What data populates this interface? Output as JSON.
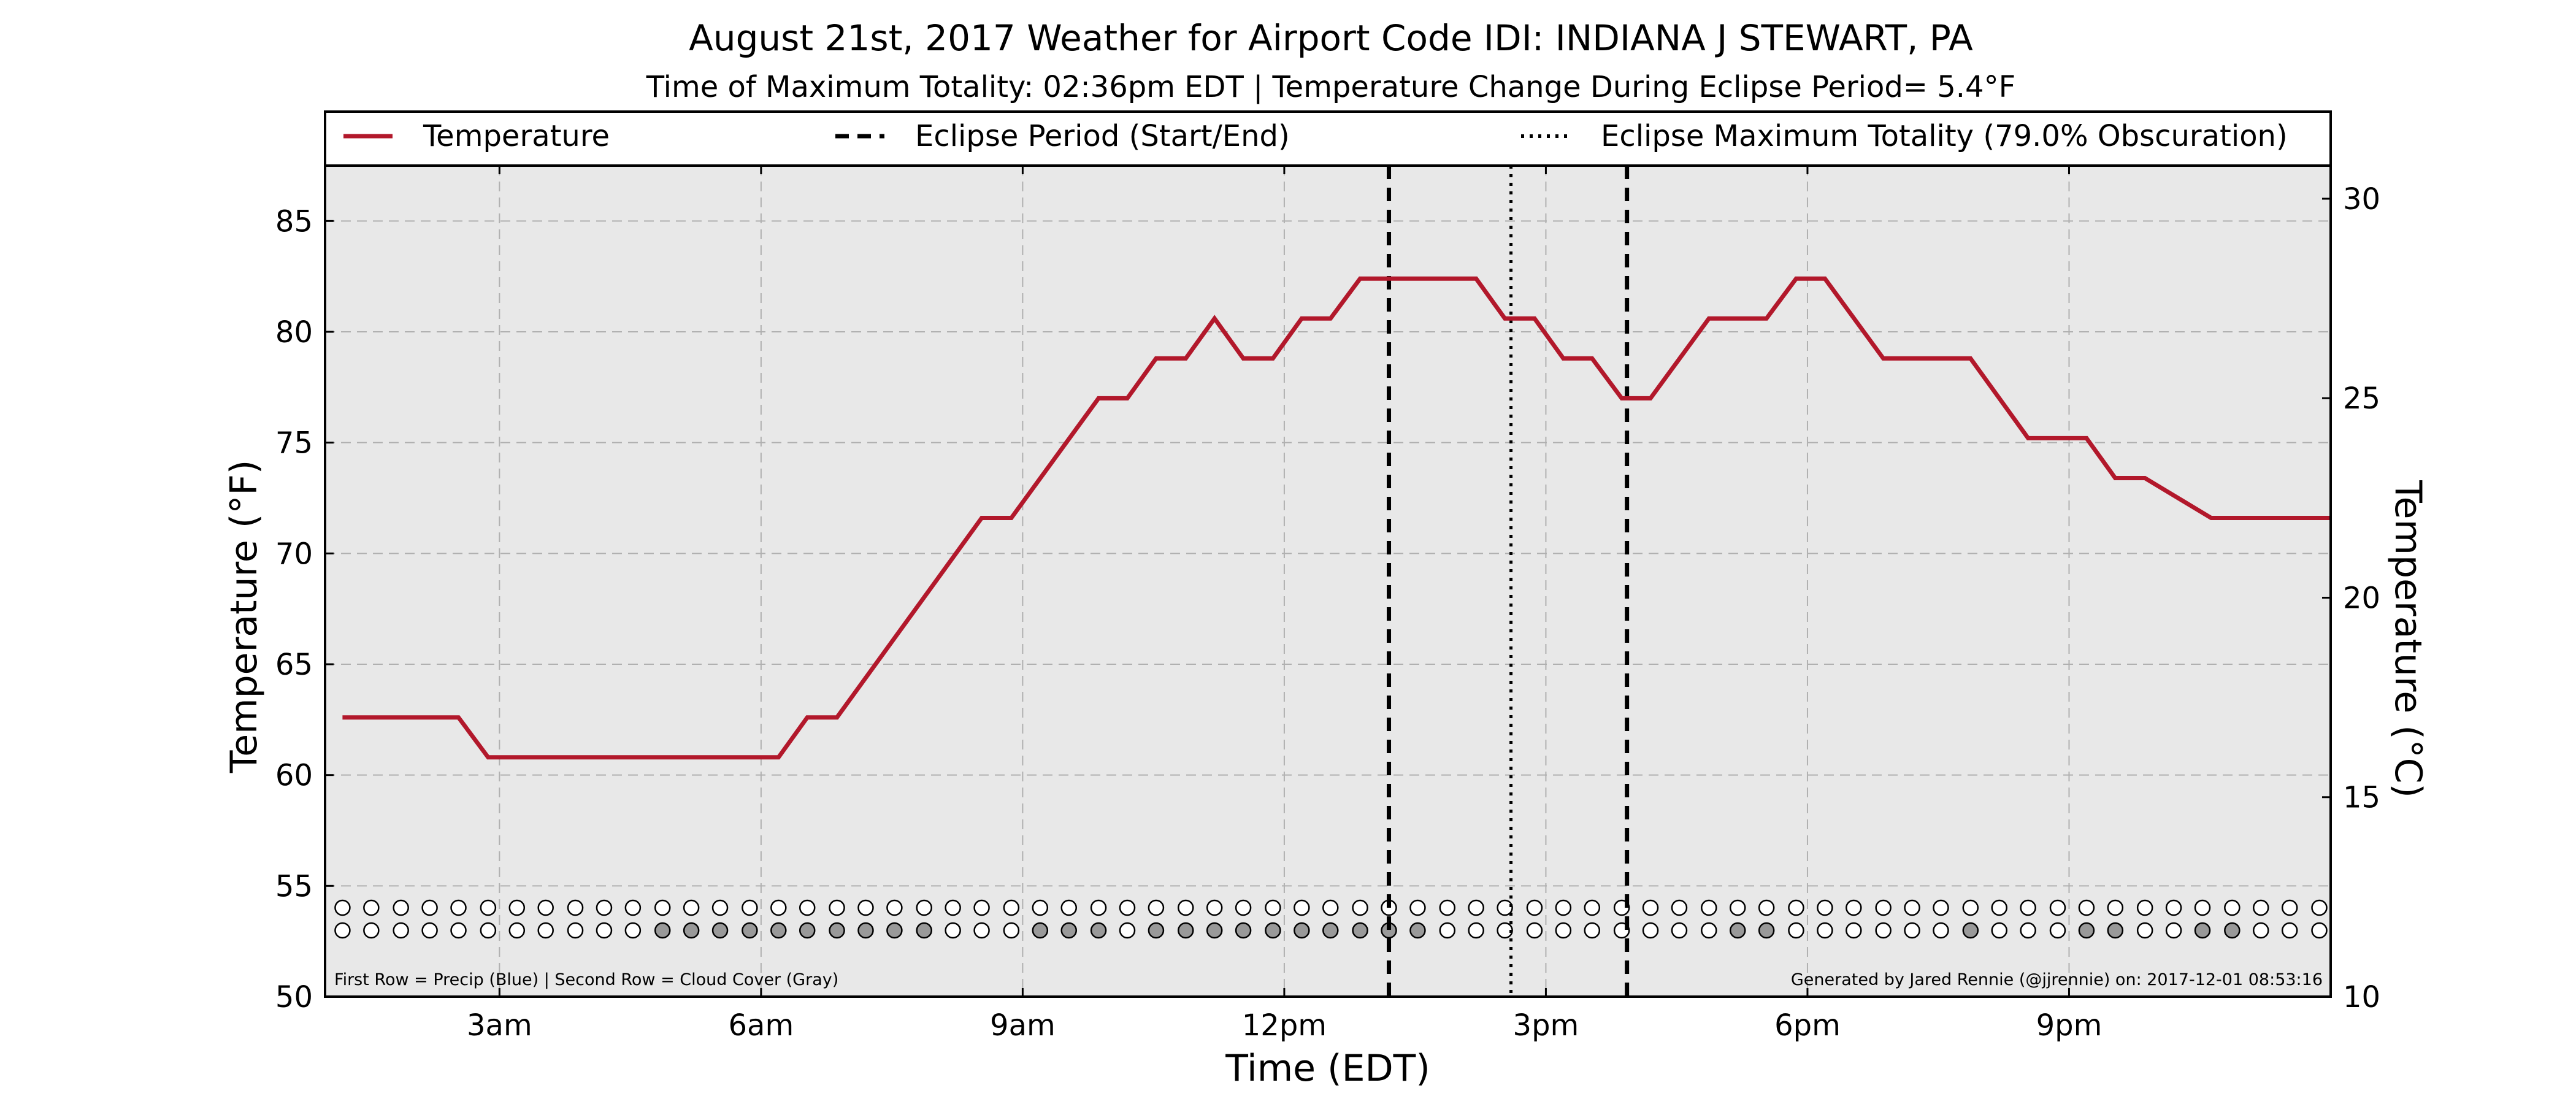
{
  "title": "August 21st, 2017 Weather for Airport Code IDI: INDIANA J STEWART, PA",
  "subtitle": "Time of Maximum Totality: 02:36pm EDT | Temperature Change During Eclipse Period= 5.4°F",
  "footer_left": "First Row = Precip (Blue) | Second Row = Cloud Cover (Gray)",
  "footer_right": "Generated by Jared Rennie (@jjrennie) on: 2017-12-01 08:53:16",
  "colors": {
    "temperature_line": "#b2182b",
    "plot_background": "#e8e8e8",
    "cloud_fill": "#999999",
    "empty_dot": "#ffffff",
    "grid": "#b0b0b0"
  },
  "chart_data": {
    "type": "line",
    "title": "August 21st, 2017 Weather for Airport Code IDI: INDIANA J STEWART, PA",
    "xlabel": "Time (EDT)",
    "ylabel": "Temperature (°F)",
    "ylabel_right": "Temperature (°C)",
    "xlim": [
      1.0,
      24.0
    ],
    "ylim": [
      50,
      87.5
    ],
    "ylim_right": [
      10,
      30.83
    ],
    "x_ticks": [
      3,
      6,
      9,
      12,
      15,
      18,
      21
    ],
    "x_tick_labels": [
      "3am",
      "6am",
      "9am",
      "12pm",
      "3pm",
      "6pm",
      "9pm"
    ],
    "y_ticks": [
      50,
      55,
      60,
      65,
      70,
      75,
      80,
      85
    ],
    "y_tick_labels": [
      "50",
      "55",
      "60",
      "65",
      "70",
      "75",
      "80",
      "85"
    ],
    "y_ticks_right": [
      10,
      15,
      20,
      25,
      30
    ],
    "y_tick_labels_right": [
      "10",
      "15",
      "20",
      "25",
      "30"
    ],
    "grid": true,
    "legend_position": "top",
    "legend": [
      {
        "label": "Temperature",
        "style": "solid"
      },
      {
        "label": "Eclipse Period (Start/End)",
        "style": "dashed"
      },
      {
        "label": "Eclipse Maximum Totality (79.0% Obscuration)",
        "style": "dotted"
      }
    ],
    "series": [
      {
        "name": "Temperature",
        "x": [
          1.2,
          2.53,
          2.87,
          6.2,
          6.53,
          6.87,
          8.53,
          8.87,
          9.87,
          10.2,
          10.53,
          10.87,
          11.2,
          11.53,
          11.87,
          12.2,
          12.53,
          12.87,
          14.2,
          14.53,
          14.87,
          15.2,
          15.53,
          15.87,
          16.2,
          16.87,
          17.53,
          17.87,
          18.2,
          18.87,
          19.87,
          20.53,
          21.2,
          21.53,
          21.87,
          22.63,
          23.2,
          24.0
        ],
        "y": [
          62.6,
          62.6,
          60.8,
          60.8,
          62.6,
          62.6,
          71.6,
          71.6,
          77.0,
          77.0,
          78.8,
          78.8,
          80.6,
          78.8,
          78.8,
          80.6,
          80.6,
          82.4,
          82.4,
          80.6,
          80.6,
          78.8,
          78.8,
          77.0,
          77.0,
          80.6,
          80.6,
          82.4,
          82.4,
          78.8,
          78.8,
          75.2,
          75.2,
          73.4,
          73.4,
          71.6,
          71.6,
          71.6
        ]
      }
    ],
    "eclipse_start": 13.2,
    "eclipse_max": 14.6,
    "eclipse_end": 15.93,
    "observation_x": [
      1.2,
      1.53,
      1.87,
      2.2,
      2.53,
      2.87,
      3.2,
      3.53,
      3.87,
      4.2,
      4.53,
      4.87,
      5.2,
      5.53,
      5.87,
      6.2,
      6.53,
      6.87,
      7.2,
      7.53,
      7.87,
      8.2,
      8.53,
      8.87,
      9.2,
      9.53,
      9.87,
      10.2,
      10.53,
      10.87,
      11.2,
      11.53,
      11.87,
      12.2,
      12.53,
      12.87,
      13.2,
      13.53,
      13.87,
      14.2,
      14.53,
      14.87,
      15.2,
      15.53,
      15.87,
      16.2,
      16.53,
      16.87,
      17.2,
      17.53,
      17.87,
      18.2,
      18.53,
      18.87,
      19.2,
      19.53,
      19.87,
      20.2,
      20.53,
      20.87,
      21.2,
      21.53,
      21.87,
      22.2,
      22.53,
      22.87,
      23.2,
      23.53,
      23.87
    ],
    "precip_row": [
      0,
      0,
      0,
      0,
      0,
      0,
      0,
      0,
      0,
      0,
      0,
      0,
      0,
      0,
      0,
      0,
      0,
      0,
      0,
      0,
      0,
      0,
      0,
      0,
      0,
      0,
      0,
      0,
      0,
      0,
      0,
      0,
      0,
      0,
      0,
      0,
      0,
      0,
      0,
      0,
      0,
      0,
      0,
      0,
      0,
      0,
      0,
      0,
      0,
      0,
      0,
      0,
      0,
      0,
      0,
      0,
      0,
      0,
      0,
      0,
      0,
      0,
      0,
      0,
      0,
      0,
      0,
      0,
      0
    ],
    "cloud_row": [
      0,
      0,
      0,
      0,
      0,
      0,
      0,
      0,
      0,
      0,
      0,
      1,
      1,
      1,
      1,
      1,
      1,
      1,
      1,
      1,
      1,
      0,
      0,
      0,
      1,
      1,
      1,
      0,
      1,
      1,
      1,
      1,
      1,
      1,
      1,
      1,
      1,
      1,
      0,
      0,
      0,
      0,
      0,
      0,
      0,
      0,
      0,
      0,
      1,
      1,
      0,
      0,
      0,
      0,
      0,
      0,
      1,
      0,
      0,
      0,
      1,
      1,
      0,
      0,
      1,
      1,
      0,
      0,
      0
    ]
  }
}
